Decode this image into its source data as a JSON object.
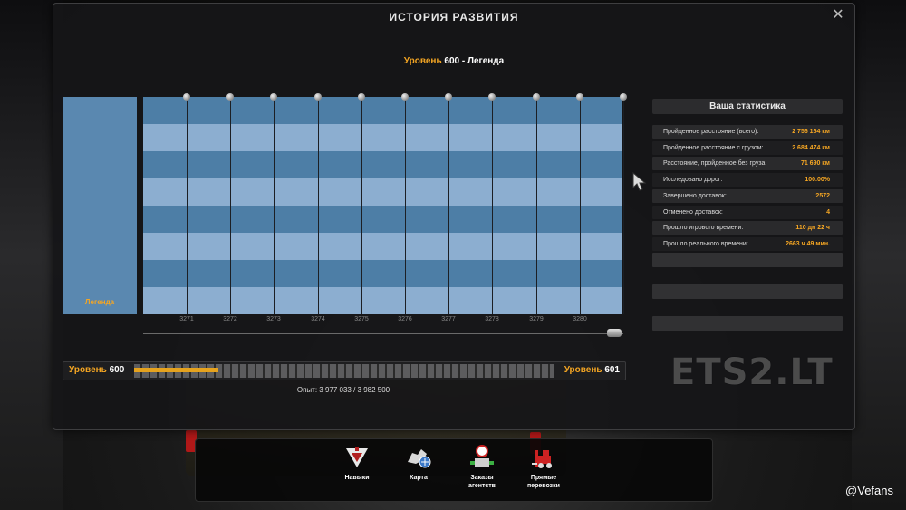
{
  "window": {
    "title": "ИСТОРИЯ РАЗВИТИЯ",
    "close_label": "✕"
  },
  "level": {
    "prefix": "Уровень",
    "number": "600",
    "suffix": " - Легенда"
  },
  "skill_tree": {
    "legend_label": "Легенда",
    "columns": [
      "3271",
      "3272",
      "3273",
      "3274",
      "3275",
      "3276",
      "3277",
      "3278",
      "3279",
      "3280"
    ]
  },
  "progress": {
    "left_label": "Уровень",
    "left_value": "600",
    "right_label": "Уровень",
    "right_value": "601",
    "fill_fraction": 0.2,
    "xp_text": "Опыт: 3 977 033 / 3 982 500"
  },
  "stats": {
    "title": "Ваша статистика",
    "rows": [
      {
        "label": "Пройденное расстояние (всего):",
        "value": "2 756 164 км"
      },
      {
        "label": "Пройденное расстояние с грузом:",
        "value": "2 684 474 км"
      },
      {
        "label": "Расстояние, пройденное без груза:",
        "value": "71 690 км"
      },
      {
        "label": "Исследовано дорог:",
        "value": "100.00%"
      },
      {
        "label": "Завершено доставок:",
        "value": "2572"
      },
      {
        "label": "Отменено доставок:",
        "value": "4"
      },
      {
        "label": "Прошло игрового времени:",
        "value": "110 дн 22 ч"
      },
      {
        "label": "Прошло реального времени:",
        "value": "2663 ч 49 мин."
      }
    ]
  },
  "watermark": "ETS2.LT",
  "toolbar": {
    "items": [
      {
        "label": "Навыки",
        "icon": "skills-icon"
      },
      {
        "label": "Карта",
        "icon": "map-icon"
      },
      {
        "label": "Заказы агентств",
        "icon": "agency-orders-icon"
      },
      {
        "label": "Прямые перевозки",
        "icon": "direct-freight-icon"
      }
    ]
  },
  "credit": "@Vefans",
  "colors": {
    "accent": "#f5a623",
    "grid_dark": "#4d7ea6",
    "grid_light": "#8caed0"
  }
}
